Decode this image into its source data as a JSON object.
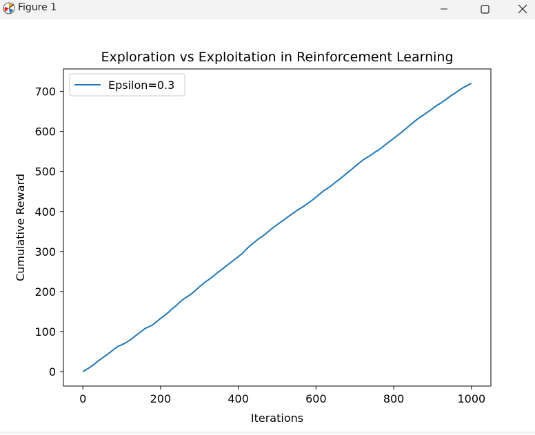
{
  "window": {
    "title": "Figure 1",
    "icon": "matplotlib-figure-icon",
    "controls": [
      "minimize-icon",
      "maximize-icon",
      "close-icon"
    ]
  },
  "chart_data": {
    "type": "line",
    "title": "Exploration vs Exploitation in Reinforcement Learning",
    "xlabel": "Iterations",
    "ylabel": "Cumulative Reward",
    "xlim": [
      -50,
      1050
    ],
    "ylim": [
      -36,
      756
    ],
    "xticks": [
      0,
      200,
      400,
      600,
      800,
      1000
    ],
    "yticks": [
      0,
      100,
      200,
      300,
      400,
      500,
      600,
      700
    ],
    "grid": false,
    "legend": {
      "placement": "upper left"
    },
    "series": [
      {
        "name": "Epsilon=0.3",
        "color": "#1f77b4",
        "x": [
          0,
          10,
          20,
          30,
          40,
          50,
          60,
          70,
          80,
          90,
          100,
          110,
          120,
          130,
          140,
          150,
          160,
          170,
          180,
          190,
          200,
          210,
          220,
          230,
          240,
          250,
          260,
          270,
          280,
          290,
          300,
          310,
          320,
          330,
          340,
          350,
          360,
          370,
          380,
          390,
          400,
          410,
          420,
          430,
          440,
          450,
          460,
          470,
          480,
          490,
          500,
          510,
          520,
          530,
          540,
          550,
          560,
          570,
          580,
          590,
          600,
          610,
          620,
          630,
          640,
          650,
          660,
          670,
          680,
          690,
          700,
          710,
          720,
          730,
          740,
          750,
          760,
          770,
          780,
          790,
          800,
          810,
          820,
          830,
          840,
          850,
          860,
          870,
          880,
          890,
          900,
          910,
          920,
          930,
          940,
          950,
          960,
          970,
          980,
          990,
          1000
        ],
        "y": [
          0,
          6,
          12,
          19,
          27,
          34,
          41,
          48,
          56,
          63,
          67,
          72,
          78,
          85,
          93,
          100,
          108,
          112,
          117,
          125,
          133,
          140,
          148,
          157,
          165,
          174,
          182,
          188,
          195,
          203,
          212,
          220,
          227,
          234,
          242,
          250,
          257,
          265,
          272,
          280,
          287,
          295,
          305,
          314,
          322,
          330,
          337,
          344,
          352,
          360,
          367,
          374,
          381,
          388,
          395,
          402,
          408,
          414,
          421,
          428,
          436,
          444,
          452,
          458,
          465,
          473,
          480,
          488,
          496,
          504,
          512,
          520,
          528,
          534,
          540,
          547,
          553,
          560,
          568,
          575,
          583,
          590,
          598,
          606,
          614,
          622,
          630,
          637,
          643,
          650,
          657,
          664,
          670,
          677,
          684,
          691,
          697,
          704,
          710,
          715,
          720
        ]
      }
    ]
  }
}
